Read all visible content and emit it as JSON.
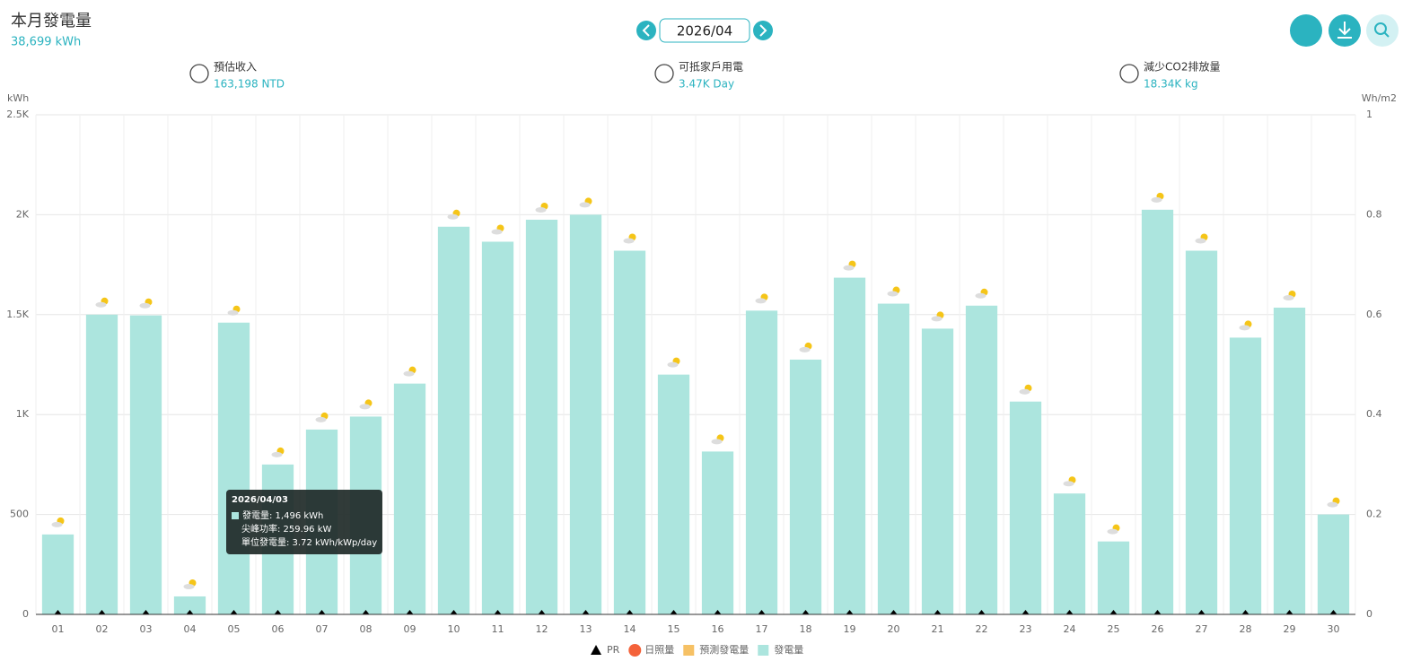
{
  "header": {
    "title": "本月發電量",
    "total": "38,699 kWh",
    "month": "2026/04",
    "stats": [
      {
        "label": "預估收入",
        "value": "163,198 NTD"
      },
      {
        "label": "可抵家戶用電",
        "value": "3.47K Day"
      },
      {
        "label": "減少CO2排放量",
        "value": "18.34K kg"
      }
    ]
  },
  "chart_data": {
    "type": "bar",
    "y_label": "kWh",
    "y2_label": "Wh/m2",
    "categories": [
      "01",
      "02",
      "03",
      "04",
      "05",
      "06",
      "07",
      "08",
      "09",
      "10",
      "11",
      "12",
      "13",
      "14",
      "15",
      "16",
      "17",
      "18",
      "19",
      "20",
      "21",
      "22",
      "23",
      "24",
      "25",
      "26",
      "27",
      "28",
      "29",
      "30"
    ],
    "series": [
      {
        "name": "發電量",
        "color": "#ace5de",
        "values": [
          400,
          1500,
          1496,
          90,
          1460,
          750,
          925,
          990,
          1155,
          1940,
          1865,
          1975,
          2000,
          1820,
          1200,
          815,
          1520,
          1275,
          1685,
          1555,
          1430,
          1545,
          1065,
          605,
          365,
          2025,
          1820,
          1385,
          1535,
          500
        ]
      },
      {
        "name": "PR",
        "color": "#000000",
        "axis": "y2",
        "values": [
          0,
          0,
          0,
          0,
          0,
          0,
          0,
          0,
          0,
          0,
          0,
          0,
          0,
          0,
          0,
          0,
          0,
          0,
          0,
          0,
          0,
          0,
          0,
          0,
          0,
          0,
          0,
          0,
          0,
          0
        ]
      }
    ],
    "legend": [
      {
        "name": "PR",
        "color": "#000000"
      },
      {
        "name": "日照量",
        "color": "#f4623a"
      },
      {
        "name": "預測發電量",
        "color": "#f6c165"
      },
      {
        "name": "發電量",
        "color": "#ace5de"
      }
    ],
    "ylim": [
      0,
      2500
    ],
    "yticks": [
      0,
      500,
      {
        "value": 1000,
        "label": "1K"
      },
      {
        "value": 1500,
        "label": "1.5K"
      },
      {
        "value": 2000,
        "label": "2K"
      },
      {
        "value": 2500,
        "label": "2.5K"
      }
    ],
    "y2lim": [
      0,
      1
    ],
    "y2ticks": [
      0,
      0.2,
      0.4,
      0.6,
      0.8,
      1
    ],
    "grid": true,
    "tooltip": {
      "title": "2026/04/03",
      "lines": [
        "發電量: 1,496 kWh",
        "尖峰功率: 259.96 kW",
        "單位發電量: 3.72 kWh/kWp/day"
      ]
    }
  }
}
